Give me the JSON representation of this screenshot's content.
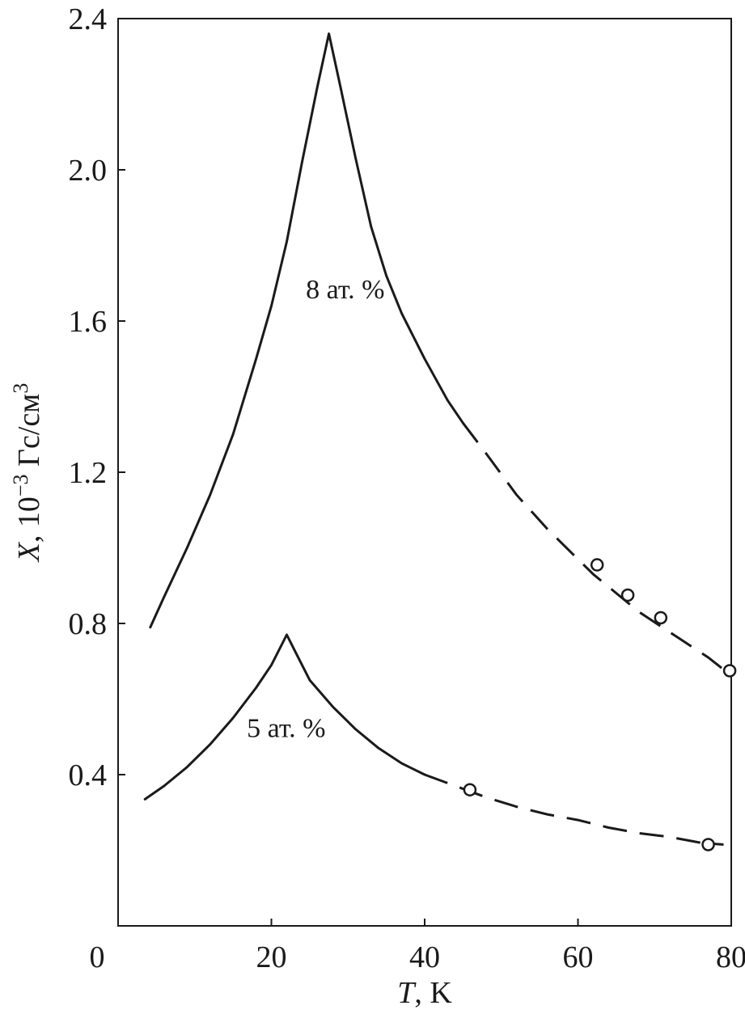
{
  "chart_data": {
    "type": "line",
    "xlabel_var": "T",
    "xlabel_unit": ", K",
    "ylabel_var": "X",
    "ylabel_unit": ", 10",
    "ylabel_exp": "−3",
    "ylabel_unit2": " Гс/см",
    "ylabel_exp2": "3",
    "xlim": [
      0,
      80
    ],
    "ylim": [
      0,
      2.4
    ],
    "xticks": [
      0,
      20,
      40,
      60,
      80
    ],
    "xtick_labels": [
      "0",
      "20",
      "40",
      "60",
      "80"
    ],
    "yticks": [
      0.4,
      0.8,
      1.2,
      1.6,
      2.0,
      2.4
    ],
    "ytick_labels": [
      "0.4",
      "0.8",
      "1.2",
      "1.6",
      "2.0",
      "2.4"
    ],
    "grid": false,
    "series": [
      {
        "name": "8 ат. %",
        "label_at": [
          24.5,
          1.66
        ],
        "solid": [
          [
            4.2,
            0.79
          ],
          [
            6,
            0.87
          ],
          [
            9,
            1.0
          ],
          [
            12,
            1.14
          ],
          [
            15,
            1.3
          ],
          [
            18,
            1.5
          ],
          [
            20,
            1.64
          ],
          [
            22,
            1.81
          ],
          [
            24,
            2.02
          ],
          [
            26,
            2.22
          ],
          [
            27.5,
            2.36
          ],
          [
            29,
            2.22
          ],
          [
            31,
            2.03
          ],
          [
            33,
            1.85
          ],
          [
            35,
            1.72
          ],
          [
            37,
            1.62
          ],
          [
            40,
            1.5
          ],
          [
            43,
            1.39
          ],
          [
            45,
            1.33
          ]
        ],
        "dashed": [
          [
            45,
            1.33
          ],
          [
            48,
            1.25
          ],
          [
            52,
            1.14
          ],
          [
            56,
            1.05
          ],
          [
            60,
            0.97
          ],
          [
            62,
            0.93
          ],
          [
            65,
            0.88
          ],
          [
            68,
            0.83
          ],
          [
            71,
            0.79
          ],
          [
            74,
            0.75
          ],
          [
            77,
            0.71
          ],
          [
            79.5,
            0.67
          ]
        ],
        "markers": [
          [
            62.5,
            0.955
          ],
          [
            66.5,
            0.875
          ],
          [
            70.8,
            0.815
          ],
          [
            79.8,
            0.675
          ]
        ]
      },
      {
        "name": "5 ат. %",
        "label_at": [
          16.8,
          0.5
        ],
        "solid": [
          [
            3.5,
            0.335
          ],
          [
            6,
            0.37
          ],
          [
            9,
            0.42
          ],
          [
            12,
            0.48
          ],
          [
            15,
            0.55
          ],
          [
            18,
            0.63
          ],
          [
            20,
            0.69
          ],
          [
            22,
            0.77
          ],
          [
            23,
            0.73
          ],
          [
            25,
            0.65
          ],
          [
            28,
            0.58
          ],
          [
            31,
            0.52
          ],
          [
            34,
            0.47
          ],
          [
            37,
            0.43
          ],
          [
            40,
            0.4
          ]
        ],
        "dashed": [
          [
            40,
            0.4
          ],
          [
            44,
            0.37
          ],
          [
            48,
            0.34
          ],
          [
            52,
            0.315
          ],
          [
            56,
            0.295
          ],
          [
            60,
            0.28
          ],
          [
            64,
            0.26
          ],
          [
            68,
            0.245
          ],
          [
            72,
            0.235
          ],
          [
            76,
            0.22
          ],
          [
            79,
            0.215
          ]
        ],
        "markers": [
          [
            45.9,
            0.36
          ],
          [
            77,
            0.215
          ]
        ]
      }
    ]
  }
}
